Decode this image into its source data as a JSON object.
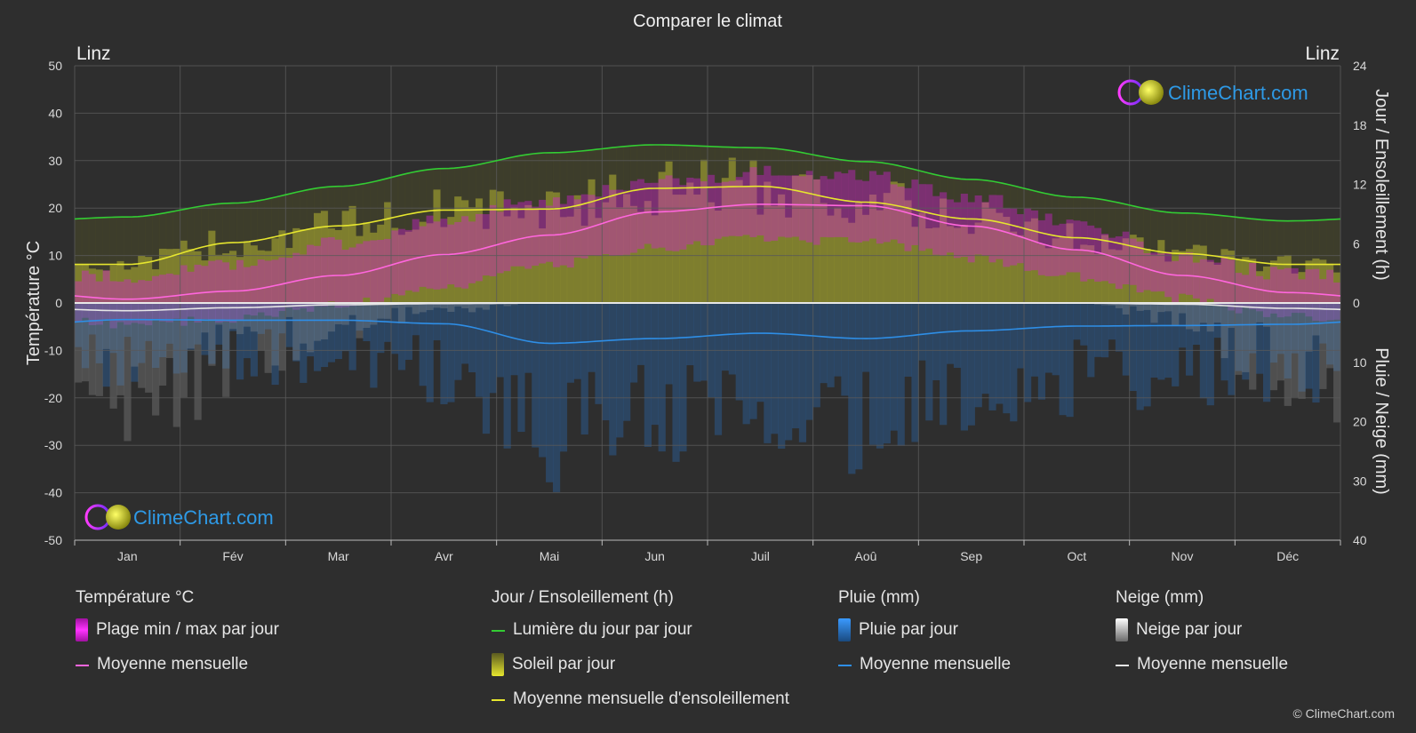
{
  "chart_data": {
    "type": "area",
    "title": "Comparer le climat",
    "location_left": "Linz",
    "location_right": "Linz",
    "categories": [
      "Jan",
      "Fév",
      "Mar",
      "Avr",
      "Mai",
      "Jun",
      "Juil",
      "Aoû",
      "Sep",
      "Oct",
      "Nov",
      "Déc"
    ],
    "y_left": {
      "label": "Température °C",
      "range": [
        -50,
        50
      ],
      "ticks": [
        "50",
        "40",
        "30",
        "20",
        "10",
        "0",
        "-10",
        "-20",
        "-30",
        "-40",
        "-50"
      ]
    },
    "y_right_top": {
      "label": "Jour / Ensoleillement (h)",
      "range": [
        0,
        24
      ],
      "ticks": [
        "24",
        "18",
        "12",
        "6",
        "0"
      ]
    },
    "y_right_bottom": {
      "label": "Pluie / Neige (mm)",
      "range": [
        0,
        40
      ],
      "ticks": [
        "10",
        "20",
        "30",
        "40"
      ]
    },
    "grid": true,
    "series": [
      {
        "name": "Lumière du jour par jour",
        "axis": "hours",
        "color": "#33cc33",
        "values": [
          8.7,
          10.1,
          11.8,
          13.6,
          15.2,
          16.0,
          15.7,
          14.3,
          12.5,
          10.7,
          9.1,
          8.3
        ]
      },
      {
        "name": "Moyenne mensuelle d'ensoleillement",
        "axis": "hours",
        "color": "#e6e62e",
        "values": [
          3.9,
          6.1,
          7.8,
          9.4,
          9.5,
          11.6,
          11.8,
          10.2,
          8.5,
          6.6,
          5.0,
          3.9
        ]
      },
      {
        "name": "Moyenne mensuelle",
        "group": "Température °C",
        "axis": "temperature",
        "color": "#ff66dd",
        "values": [
          0.8,
          2.5,
          5.8,
          10.2,
          14.3,
          19.2,
          20.8,
          20.5,
          16.2,
          11.2,
          5.8,
          2.2
        ]
      },
      {
        "name": "Moyenne mensuelle",
        "group": "Pluie (mm)",
        "axis": "precip",
        "color": "#2e8ee6",
        "values": [
          2.8,
          2.9,
          2.9,
          3.5,
          6.8,
          6.0,
          5.1,
          6.0,
          4.7,
          3.9,
          3.8,
          3.6
        ]
      },
      {
        "name": "Moyenne mensuelle",
        "group": "Neige (mm)",
        "axis": "precip",
        "color": "#e6e6e6",
        "values": [
          1.3,
          0.8,
          0.3,
          0.1,
          0,
          0,
          0,
          0,
          0,
          0,
          0.2,
          0.9
        ]
      }
    ],
    "daily_temp_range": {
      "min": [
        -3.5,
        -2.5,
        0.5,
        4.5,
        9,
        12.5,
        14.5,
        14,
        10.5,
        6.5,
        2,
        -2
      ],
      "max": [
        4,
        6.5,
        11,
        16,
        20.5,
        24,
        26,
        25.5,
        21,
        15,
        8.5,
        4.5
      ]
    }
  },
  "legend": {
    "temperature": {
      "title": "Température °C",
      "range_label": "Plage min / max par jour",
      "avg_label": "Moyenne mensuelle"
    },
    "sun": {
      "title": "Jour / Ensoleillement (h)",
      "daylight_label": "Lumière du jour par jour",
      "sun_label": "Soleil par jour",
      "avg_label": "Moyenne mensuelle d'ensoleillement"
    },
    "rain": {
      "title": "Pluie (mm)",
      "daily_label": "Pluie par jour",
      "avg_label": "Moyenne mensuelle"
    },
    "snow": {
      "title": "Neige (mm)",
      "daily_label": "Neige par jour",
      "avg_label": "Moyenne mensuelle"
    }
  },
  "brand": {
    "name": "ClimeChart.com",
    "copyright": "© ClimeChart.com"
  },
  "colors": {
    "background": "#2e2e2e",
    "grid": "#5a5a5a",
    "brand": "#2e9ae6",
    "temp_range": "#d21ed2",
    "sunshine": "#b4b432",
    "rain": "#2a6bb5",
    "snow": "#9a9a9a"
  }
}
